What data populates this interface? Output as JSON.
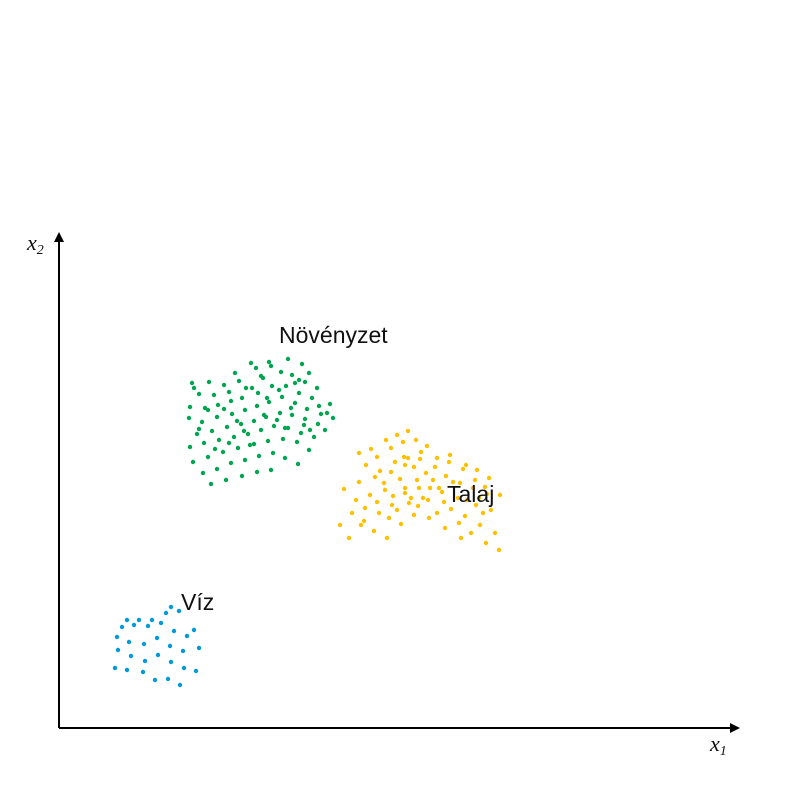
{
  "chart_data": {
    "type": "scatter",
    "title": "",
    "xlabel": "x",
    "xlabel_sub": "1",
    "ylabel": "x",
    "ylabel_sub": "2",
    "xlim": [
      0,
      680
    ],
    "ylim": [
      0,
      495
    ],
    "grid": false,
    "ticks": false,
    "series": [
      {
        "name": "Növényzet",
        "color": "#00a550",
        "points": [
          [
            133,
            345
          ],
          [
            150,
            346
          ],
          [
            165,
            343
          ],
          [
            180,
            347
          ],
          [
            197,
            360
          ],
          [
            212,
            362
          ],
          [
            229,
            369
          ],
          [
            243,
            364
          ],
          [
            250,
            355
          ],
          [
            140,
            334
          ],
          [
            155,
            333
          ],
          [
            170,
            336
          ],
          [
            187,
            340
          ],
          [
            202,
            352
          ],
          [
            222,
            356
          ],
          [
            233,
            353
          ],
          [
            246,
            346
          ],
          [
            258,
            340
          ],
          [
            131,
            321
          ],
          [
            146,
            320
          ],
          [
            159,
            323
          ],
          [
            172,
            327
          ],
          [
            183,
            330
          ],
          [
            199,
            335
          ],
          [
            213,
            342
          ],
          [
            227,
            342
          ],
          [
            240,
            335
          ],
          [
            253,
            330
          ],
          [
            271,
            324
          ],
          [
            130,
            310
          ],
          [
            143,
            306
          ],
          [
            158,
            311
          ],
          [
            173,
            314
          ],
          [
            186,
            318
          ],
          [
            198,
            322
          ],
          [
            210,
            326
          ],
          [
            223,
            331
          ],
          [
            236,
            325
          ],
          [
            248,
            319
          ],
          [
            262,
            314
          ],
          [
            274,
            310
          ],
          [
            138,
            294
          ],
          [
            153,
            297
          ],
          [
            168,
            301
          ],
          [
            182,
            304
          ],
          [
            195,
            307
          ],
          [
            207,
            311
          ],
          [
            221,
            315
          ],
          [
            233,
            313
          ],
          [
            246,
            309
          ],
          [
            259,
            304
          ],
          [
            266,
            298
          ],
          [
            131,
            281
          ],
          [
            145,
            285
          ],
          [
            160,
            288
          ],
          [
            175,
            291
          ],
          [
            189,
            294
          ],
          [
            202,
            298
          ],
          [
            215,
            302
          ],
          [
            229,
            300
          ],
          [
            242,
            295
          ],
          [
            255,
            291
          ],
          [
            134,
            266
          ],
          [
            149,
            271
          ],
          [
            164,
            276
          ],
          [
            179,
            280
          ],
          [
            195,
            284
          ],
          [
            209,
            287
          ],
          [
            224,
            289
          ],
          [
            238,
            286
          ],
          [
            250,
            278
          ],
          [
            144,
            255
          ],
          [
            158,
            259
          ],
          [
            172,
            265
          ],
          [
            186,
            268
          ],
          [
            200,
            272
          ],
          [
            214,
            275
          ],
          [
            226,
            270
          ],
          [
            239,
            264
          ],
          [
            152,
            244
          ],
          [
            167,
            248
          ],
          [
            183,
            252
          ],
          [
            198,
            256
          ],
          [
            212,
            258
          ],
          [
            140,
            299
          ],
          [
            156,
            279
          ],
          [
            170,
            285
          ],
          [
            185,
            297
          ],
          [
            191,
            283
          ],
          [
            205,
            313
          ],
          [
            218,
            308
          ],
          [
            232,
            320
          ],
          [
            245,
            303
          ],
          [
            260,
            322
          ],
          [
            165,
            319
          ],
          [
            178,
            307
          ],
          [
            193,
            340
          ],
          [
            208,
            330
          ],
          [
            220,
            338
          ],
          [
            236,
            345
          ],
          [
            149,
            318
          ],
          [
            176,
            355
          ],
          [
            192,
            365
          ],
          [
            204,
            350
          ],
          [
            210,
            366
          ],
          [
            226,
            300
          ],
          [
            240,
            348
          ],
          [
            135,
            340
          ],
          [
            268,
            315
          ],
          [
            251,
            298
          ]
        ]
      },
      {
        "name": "Talaj",
        "color": "#ffc000",
        "points": [
          [
            290,
            190
          ],
          [
            302,
            203
          ],
          [
            315,
            197
          ],
          [
            328,
            190
          ],
          [
            342,
            204
          ],
          [
            355,
            213
          ],
          [
            369,
            228
          ],
          [
            383,
            236
          ],
          [
            399,
            230
          ],
          [
            417,
            223
          ],
          [
            432,
            218
          ],
          [
            293,
            215
          ],
          [
            306,
            220
          ],
          [
            318,
            226
          ],
          [
            330,
            210
          ],
          [
            346,
            235
          ],
          [
            360,
            240
          ],
          [
            374,
            248
          ],
          [
            387,
            252
          ],
          [
            401,
            245
          ],
          [
            414,
            240
          ],
          [
            428,
            234
          ],
          [
            441,
            233
          ],
          [
            281,
            203
          ],
          [
            297,
            228
          ],
          [
            311,
            233
          ],
          [
            326,
            238
          ],
          [
            338,
            218
          ],
          [
            350,
            225
          ],
          [
            364,
            230
          ],
          [
            378,
            215
          ],
          [
            392,
            219
          ],
          [
            406,
            212
          ],
          [
            421,
            203
          ],
          [
            436,
            195
          ],
          [
            285,
            239
          ],
          [
            300,
            246
          ],
          [
            316,
            251
          ],
          [
            332,
            256
          ],
          [
            346,
            263
          ],
          [
            358,
            248
          ],
          [
            371,
            240
          ],
          [
            385,
            226
          ],
          [
            400,
            205
          ],
          [
            412,
            195
          ],
          [
            427,
            185
          ],
          [
            440,
            178
          ],
          [
            307,
            263
          ],
          [
            321,
            257
          ],
          [
            336,
            266
          ],
          [
            349,
            270
          ],
          [
            362,
            276
          ],
          [
            376,
            261
          ],
          [
            390,
            266
          ],
          [
            404,
            259
          ],
          [
            416,
            248
          ],
          [
            430,
            250
          ],
          [
            424,
            215
          ],
          [
            305,
            207
          ],
          [
            320,
            215
          ],
          [
            334,
            232
          ],
          [
            341,
            249
          ],
          [
            355,
            261
          ],
          [
            367,
            255
          ],
          [
            380,
            240
          ],
          [
            394,
            246
          ],
          [
            408,
            228
          ],
          [
            420,
            230
          ],
          [
            318,
            271
          ],
          [
            332,
            280
          ],
          [
            344,
            286
          ],
          [
            357,
            288
          ],
          [
            368,
            282
          ],
          [
            378,
            270
          ],
          [
            391,
            273
          ],
          [
            407,
            263
          ],
          [
            418,
            258
          ],
          [
            426,
            241
          ],
          [
            300,
            275
          ],
          [
            312,
            279
          ],
          [
            327,
            288
          ],
          [
            338,
            293
          ],
          [
            349,
            297
          ],
          [
            346,
            240
          ],
          [
            359,
            222
          ],
          [
            370,
            210
          ],
          [
            386,
            200
          ],
          [
            402,
            190
          ],
          [
            345,
            271
          ],
          [
            361,
            269
          ],
          [
            333,
            223
          ],
          [
            325,
            245
          ],
          [
            352,
            230
          ]
        ]
      },
      {
        "name": "Víz",
        "color": "#0099d9",
        "points": [
          [
            56,
            60
          ],
          [
            68,
            58
          ],
          [
            84,
            56
          ],
          [
            96,
            48
          ],
          [
            109,
            49
          ],
          [
            121,
            43
          ],
          [
            59,
            78
          ],
          [
            72,
            72
          ],
          [
            86,
            67
          ],
          [
            99,
            73
          ],
          [
            112,
            66
          ],
          [
            125,
            60
          ],
          [
            137,
            57
          ],
          [
            58,
            91
          ],
          [
            70,
            86
          ],
          [
            85,
            84
          ],
          [
            98,
            90
          ],
          [
            111,
            82
          ],
          [
            124,
            77
          ],
          [
            140,
            80
          ],
          [
            63,
            101
          ],
          [
            75,
            103
          ],
          [
            89,
            102
          ],
          [
            102,
            105
          ],
          [
            115,
            97
          ],
          [
            128,
            92
          ],
          [
            135,
            98
          ],
          [
            68,
            108
          ],
          [
            80,
            108
          ],
          [
            93,
            108
          ],
          [
            107,
            115
          ],
          [
            120,
            117
          ],
          [
            112,
            121
          ]
        ]
      }
    ],
    "annotations": [
      {
        "text": "Növényzet",
        "x": 220,
        "y": 385
      },
      {
        "text": "Talaj",
        "x": 388,
        "y": 226
      },
      {
        "text": "Víz",
        "x": 122,
        "y": 118
      }
    ]
  }
}
